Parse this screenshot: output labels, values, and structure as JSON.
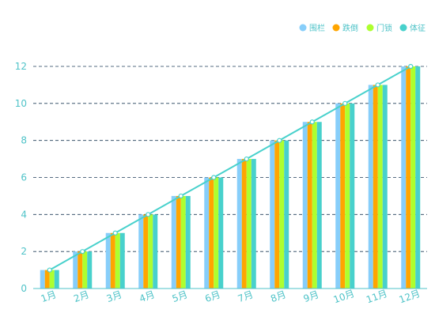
{
  "chart_data": {
    "type": "bar",
    "categories": [
      "1月",
      "2月",
      "3月",
      "4月",
      "5月",
      "6月",
      "7月",
      "8月",
      "9月",
      "10月",
      "11月",
      "12月"
    ],
    "series": [
      {
        "name": "围栏",
        "color": "#87CEFA",
        "values": [
          1,
          2,
          3,
          4,
          5,
          6,
          7,
          8,
          9,
          10,
          11,
          12
        ]
      },
      {
        "name": "跌倒",
        "color": "#FFA500",
        "values": [
          1,
          2,
          3,
          4,
          5,
          6,
          7,
          8,
          9,
          10,
          11,
          12
        ]
      },
      {
        "name": "门锁",
        "color": "#ADFF2F",
        "values": [
          1,
          2,
          3,
          4,
          5,
          6,
          7,
          8,
          9,
          10,
          11,
          12
        ]
      },
      {
        "name": "体征",
        "color": "#48D1CC",
        "values": [
          1,
          2,
          3,
          4,
          5,
          6,
          7,
          8,
          9,
          10,
          11,
          12
        ]
      }
    ],
    "line": {
      "color": "#48D1CC",
      "values": [
        1,
        2,
        3,
        4,
        5,
        6,
        7,
        8,
        9,
        10,
        11,
        12
      ]
    },
    "title": "",
    "xlabel": "",
    "ylabel": "",
    "ylim": [
      0,
      12
    ],
    "yticks": [
      0,
      2,
      4,
      6,
      8,
      10,
      12
    ],
    "grid": true,
    "legend_position": "top-right"
  }
}
